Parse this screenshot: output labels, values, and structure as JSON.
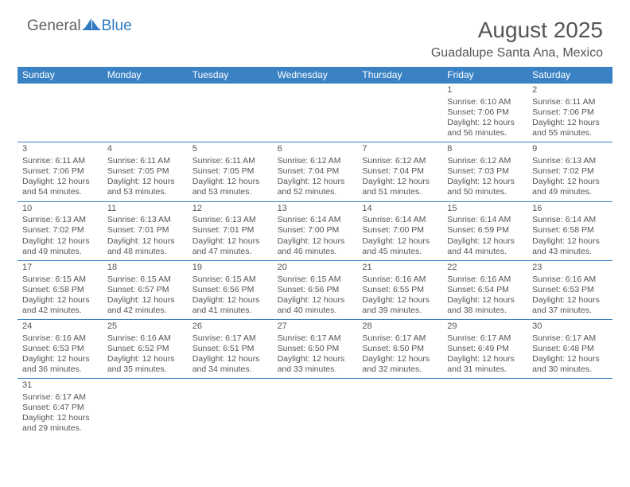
{
  "logo": {
    "general": "General",
    "blue": "Blue"
  },
  "title": "August 2025",
  "location": "Guadalupe Santa Ana, Mexico",
  "colors": {
    "header_bg": "#3b82c4",
    "header_text": "#ffffff",
    "text": "#555555",
    "logo_blue": "#2f7ac0",
    "logo_gray": "#606060",
    "border": "#3b82c4"
  },
  "dayHeaders": [
    "Sunday",
    "Monday",
    "Tuesday",
    "Wednesday",
    "Thursday",
    "Friday",
    "Saturday"
  ],
  "weeks": [
    [
      null,
      null,
      null,
      null,
      null,
      {
        "num": "1",
        "sunrise": "Sunrise: 6:10 AM",
        "sunset": "Sunset: 7:06 PM",
        "daylight": "Daylight: 12 hours and 56 minutes."
      },
      {
        "num": "2",
        "sunrise": "Sunrise: 6:11 AM",
        "sunset": "Sunset: 7:06 PM",
        "daylight": "Daylight: 12 hours and 55 minutes."
      }
    ],
    [
      {
        "num": "3",
        "sunrise": "Sunrise: 6:11 AM",
        "sunset": "Sunset: 7:06 PM",
        "daylight": "Daylight: 12 hours and 54 minutes."
      },
      {
        "num": "4",
        "sunrise": "Sunrise: 6:11 AM",
        "sunset": "Sunset: 7:05 PM",
        "daylight": "Daylight: 12 hours and 53 minutes."
      },
      {
        "num": "5",
        "sunrise": "Sunrise: 6:11 AM",
        "sunset": "Sunset: 7:05 PM",
        "daylight": "Daylight: 12 hours and 53 minutes."
      },
      {
        "num": "6",
        "sunrise": "Sunrise: 6:12 AM",
        "sunset": "Sunset: 7:04 PM",
        "daylight": "Daylight: 12 hours and 52 minutes."
      },
      {
        "num": "7",
        "sunrise": "Sunrise: 6:12 AM",
        "sunset": "Sunset: 7:04 PM",
        "daylight": "Daylight: 12 hours and 51 minutes."
      },
      {
        "num": "8",
        "sunrise": "Sunrise: 6:12 AM",
        "sunset": "Sunset: 7:03 PM",
        "daylight": "Daylight: 12 hours and 50 minutes."
      },
      {
        "num": "9",
        "sunrise": "Sunrise: 6:13 AM",
        "sunset": "Sunset: 7:02 PM",
        "daylight": "Daylight: 12 hours and 49 minutes."
      }
    ],
    [
      {
        "num": "10",
        "sunrise": "Sunrise: 6:13 AM",
        "sunset": "Sunset: 7:02 PM",
        "daylight": "Daylight: 12 hours and 49 minutes."
      },
      {
        "num": "11",
        "sunrise": "Sunrise: 6:13 AM",
        "sunset": "Sunset: 7:01 PM",
        "daylight": "Daylight: 12 hours and 48 minutes."
      },
      {
        "num": "12",
        "sunrise": "Sunrise: 6:13 AM",
        "sunset": "Sunset: 7:01 PM",
        "daylight": "Daylight: 12 hours and 47 minutes."
      },
      {
        "num": "13",
        "sunrise": "Sunrise: 6:14 AM",
        "sunset": "Sunset: 7:00 PM",
        "daylight": "Daylight: 12 hours and 46 minutes."
      },
      {
        "num": "14",
        "sunrise": "Sunrise: 6:14 AM",
        "sunset": "Sunset: 7:00 PM",
        "daylight": "Daylight: 12 hours and 45 minutes."
      },
      {
        "num": "15",
        "sunrise": "Sunrise: 6:14 AM",
        "sunset": "Sunset: 6:59 PM",
        "daylight": "Daylight: 12 hours and 44 minutes."
      },
      {
        "num": "16",
        "sunrise": "Sunrise: 6:14 AM",
        "sunset": "Sunset: 6:58 PM",
        "daylight": "Daylight: 12 hours and 43 minutes."
      }
    ],
    [
      {
        "num": "17",
        "sunrise": "Sunrise: 6:15 AM",
        "sunset": "Sunset: 6:58 PM",
        "daylight": "Daylight: 12 hours and 42 minutes."
      },
      {
        "num": "18",
        "sunrise": "Sunrise: 6:15 AM",
        "sunset": "Sunset: 6:57 PM",
        "daylight": "Daylight: 12 hours and 42 minutes."
      },
      {
        "num": "19",
        "sunrise": "Sunrise: 6:15 AM",
        "sunset": "Sunset: 6:56 PM",
        "daylight": "Daylight: 12 hours and 41 minutes."
      },
      {
        "num": "20",
        "sunrise": "Sunrise: 6:15 AM",
        "sunset": "Sunset: 6:56 PM",
        "daylight": "Daylight: 12 hours and 40 minutes."
      },
      {
        "num": "21",
        "sunrise": "Sunrise: 6:16 AM",
        "sunset": "Sunset: 6:55 PM",
        "daylight": "Daylight: 12 hours and 39 minutes."
      },
      {
        "num": "22",
        "sunrise": "Sunrise: 6:16 AM",
        "sunset": "Sunset: 6:54 PM",
        "daylight": "Daylight: 12 hours and 38 minutes."
      },
      {
        "num": "23",
        "sunrise": "Sunrise: 6:16 AM",
        "sunset": "Sunset: 6:53 PM",
        "daylight": "Daylight: 12 hours and 37 minutes."
      }
    ],
    [
      {
        "num": "24",
        "sunrise": "Sunrise: 6:16 AM",
        "sunset": "Sunset: 6:53 PM",
        "daylight": "Daylight: 12 hours and 36 minutes."
      },
      {
        "num": "25",
        "sunrise": "Sunrise: 6:16 AM",
        "sunset": "Sunset: 6:52 PM",
        "daylight": "Daylight: 12 hours and 35 minutes."
      },
      {
        "num": "26",
        "sunrise": "Sunrise: 6:17 AM",
        "sunset": "Sunset: 6:51 PM",
        "daylight": "Daylight: 12 hours and 34 minutes."
      },
      {
        "num": "27",
        "sunrise": "Sunrise: 6:17 AM",
        "sunset": "Sunset: 6:50 PM",
        "daylight": "Daylight: 12 hours and 33 minutes."
      },
      {
        "num": "28",
        "sunrise": "Sunrise: 6:17 AM",
        "sunset": "Sunset: 6:50 PM",
        "daylight": "Daylight: 12 hours and 32 minutes."
      },
      {
        "num": "29",
        "sunrise": "Sunrise: 6:17 AM",
        "sunset": "Sunset: 6:49 PM",
        "daylight": "Daylight: 12 hours and 31 minutes."
      },
      {
        "num": "30",
        "sunrise": "Sunrise: 6:17 AM",
        "sunset": "Sunset: 6:48 PM",
        "daylight": "Daylight: 12 hours and 30 minutes."
      }
    ],
    [
      {
        "num": "31",
        "sunrise": "Sunrise: 6:17 AM",
        "sunset": "Sunset: 6:47 PM",
        "daylight": "Daylight: 12 hours and 29 minutes."
      },
      null,
      null,
      null,
      null,
      null,
      null
    ]
  ]
}
